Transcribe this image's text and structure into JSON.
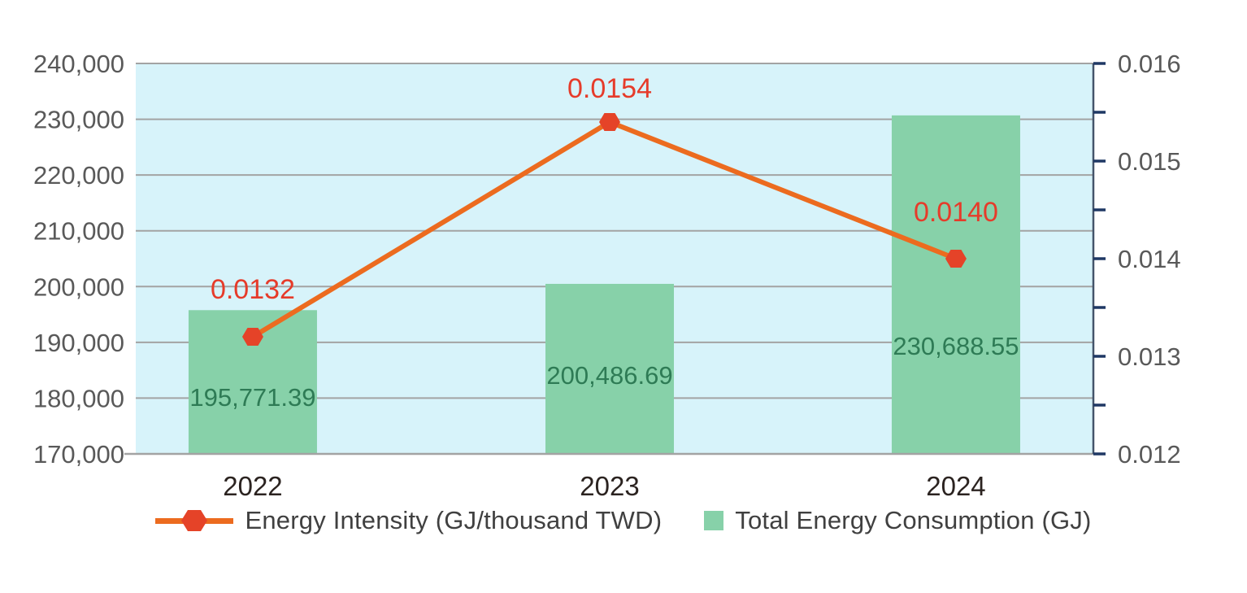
{
  "chart_data": {
    "type": "bar+line combo",
    "categories": [
      "2022",
      "2023",
      "2024"
    ],
    "series": [
      {
        "name": "Total Energy Consumption (GJ)",
        "type": "bar",
        "axis": "left",
        "values": [
          195771.39,
          200486.69,
          230688.55
        ],
        "labels": [
          "195,771.39",
          "200,486.69",
          "230,688.55"
        ],
        "color": "#87d1a9",
        "label_color": "#2e7b55"
      },
      {
        "name": "Energy Intensity (GJ/thousand TWD)",
        "type": "line",
        "axis": "right",
        "values": [
          0.0132,
          0.0154,
          0.014
        ],
        "labels": [
          "0.0132",
          "0.0154",
          "0.0140"
        ],
        "color": "#ec6b1f",
        "marker_color": "#e54328",
        "label_color": "#e63b2a",
        "marker_shape": "hexagon"
      }
    ],
    "left_axis": {
      "min": 170000,
      "max": 240000,
      "ticks": [
        {
          "v": 240000,
          "label": "240,000"
        },
        {
          "v": 230000,
          "label": "230,000"
        },
        {
          "v": 220000,
          "label": "220,000"
        },
        {
          "v": 210000,
          "label": "210,000"
        },
        {
          "v": 200000,
          "label": "200,000"
        },
        {
          "v": 190000,
          "label": "190,000"
        },
        {
          "v": 180000,
          "label": "180,000"
        },
        {
          "v": 170000,
          "label": "170,000"
        }
      ]
    },
    "right_axis": {
      "min": 0.012,
      "max": 0.016,
      "ticks": [
        {
          "v": 0.016,
          "label": "0.016"
        },
        {
          "v": 0.0155,
          "label": ""
        },
        {
          "v": 0.015,
          "label": "0.015"
        },
        {
          "v": 0.0145,
          "label": ""
        },
        {
          "v": 0.014,
          "label": "0.014"
        },
        {
          "v": 0.0135,
          "label": ""
        },
        {
          "v": 0.013,
          "label": "0.013"
        },
        {
          "v": 0.0125,
          "label": ""
        },
        {
          "v": 0.012,
          "label": "0.012"
        }
      ]
    },
    "style": {
      "plot_bg": "#d7f3fa",
      "grid_color": "#a3a3a3",
      "x_axis_line_color": "#a3a3a3",
      "right_axis_line_color": "#44546a",
      "right_tick_color": "#1f3864",
      "axis_text_color": "#595959",
      "x_label_color": "#2b2320"
    },
    "layout_hints": {
      "legend_position": "bottom",
      "grid": "horizontal-only",
      "bar_label_center_y": [
        488,
        461,
        425
      ],
      "point_label_center_offset": [
        -59,
        -42,
        -58
      ]
    }
  },
  "legend": {
    "items": [
      {
        "label": "Energy Intensity (GJ/thousand TWD)",
        "icon": "line-hexagon-icon"
      },
      {
        "label": "Total Energy Consumption (GJ)",
        "icon": "square-icon"
      }
    ]
  }
}
